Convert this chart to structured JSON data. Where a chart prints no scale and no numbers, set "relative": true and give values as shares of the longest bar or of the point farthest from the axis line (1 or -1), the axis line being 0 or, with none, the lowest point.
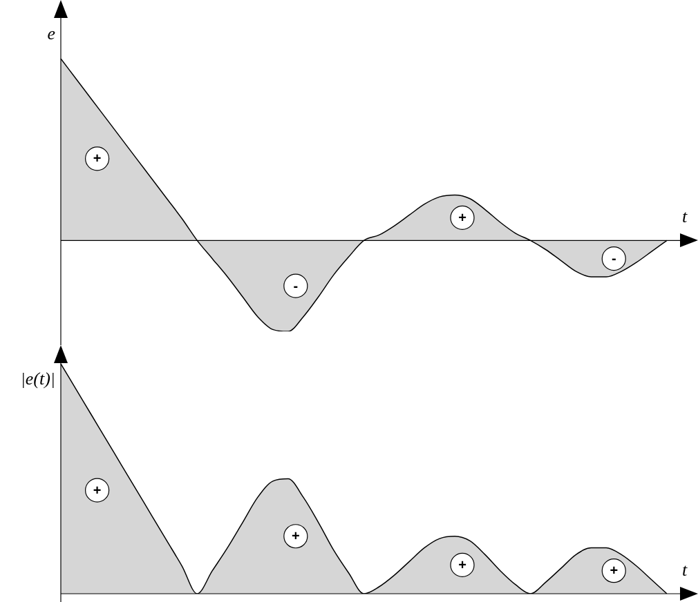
{
  "chart_data": [
    {
      "type": "area",
      "ylabel": "e",
      "xlabel": "t",
      "relative": true,
      "tick_labels": false,
      "categories": [
        null,
        null,
        null,
        null,
        null,
        null,
        null,
        null,
        null,
        null,
        null,
        null,
        null,
        null,
        null,
        null,
        null,
        null,
        null,
        null,
        null,
        null,
        null,
        null,
        null,
        null,
        null,
        null,
        null,
        null,
        null,
        null,
        null,
        null,
        null,
        null,
        null,
        null,
        null,
        null,
        null
      ],
      "series": [
        {
          "color": "#000000",
          "values": [
            1,
            0.89,
            0.78,
            0.67,
            0.56,
            0.45,
            0.34,
            0.23,
            0.12,
            0,
            -0.1,
            -0.2,
            -0.31,
            -0.42,
            -0.49,
            -0.5,
            -0.42,
            -0.31,
            -0.19,
            -0.09,
            0,
            0.03,
            0.08,
            0.14,
            0.2,
            0.24,
            0.25,
            0.23,
            0.17,
            0.1,
            0.04,
            0,
            -0.05,
            -0.11,
            -0.17,
            -0.2,
            -0.2,
            -0.17,
            -0.12,
            -0.06,
            0
          ]
        }
      ],
      "annotations": [
        "+",
        "-",
        "+",
        "-"
      ]
    },
    {
      "type": "area",
      "ylabel": "|e(t)|",
      "xlabel": "t",
      "relative": true,
      "tick_labels": false,
      "categories": [
        null,
        null,
        null,
        null,
        null,
        null,
        null,
        null,
        null,
        null,
        null,
        null,
        null,
        null,
        null,
        null,
        null,
        null,
        null,
        null,
        null,
        null,
        null,
        null,
        null,
        null,
        null,
        null,
        null,
        null,
        null,
        null,
        null,
        null,
        null,
        null,
        null,
        null,
        null,
        null,
        null
      ],
      "series": [
        {
          "color": "#000000",
          "values": [
            1,
            0.89,
            0.78,
            0.67,
            0.56,
            0.45,
            0.34,
            0.23,
            0.12,
            0,
            0.1,
            0.2,
            0.31,
            0.42,
            0.49,
            0.5,
            0.42,
            0.31,
            0.19,
            0.09,
            0,
            0.03,
            0.08,
            0.14,
            0.2,
            0.24,
            0.25,
            0.23,
            0.17,
            0.1,
            0.04,
            0,
            0.05,
            0.11,
            0.17,
            0.2,
            0.2,
            0.17,
            0.12,
            0.06,
            0
          ]
        }
      ],
      "annotations": [
        "+",
        "+",
        "+",
        "+"
      ]
    }
  ]
}
